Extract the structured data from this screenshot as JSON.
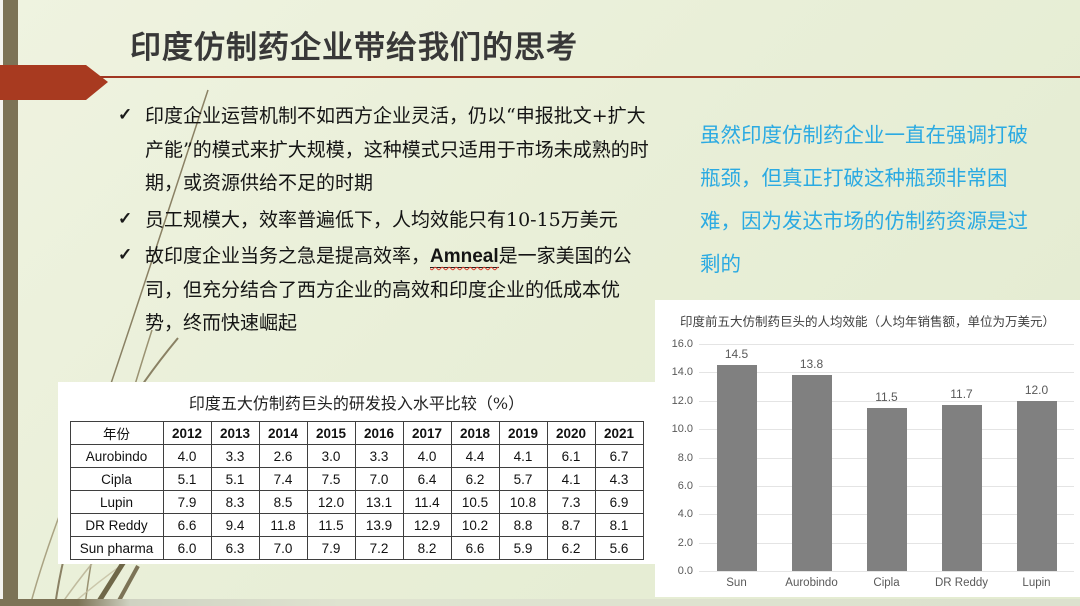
{
  "slide": {
    "title": "印度仿制药企业带给我们的思考",
    "check_glyph": "✓",
    "bullets": {
      "b1": "印度企业运营机制不如西方企业灵活，仍以“申报批文+扩大产能”的模式来扩大规模，这种模式只适用于市场未成熟的时期，或资源供给不足的时期",
      "b2": "员工规模大，效率普遍低下，人均效能只有10-15万美元",
      "b3_pre": "故印度企业当务之急是提高效率，",
      "b3_em": "Amneal",
      "b3_post": "是一家美国的公司，但充分结合了西方企业的高效和印度企业的低成本优势，终而快速崛起"
    },
    "note": "虽然印度仿制药企业一直在强调打破瓶颈，但真正打破这种瓶颈非常困难，因为发达市场的仿制药资源是过剩的"
  },
  "rd_table": {
    "title": "印度五大仿制药巨头的研发投入水平比较（%）",
    "header": [
      "年份",
      "2012",
      "2013",
      "2014",
      "2015",
      "2016",
      "2017",
      "2018",
      "2019",
      "2020",
      "2021"
    ],
    "rows": [
      {
        "name": "Aurobindo",
        "values": [
          "4.0",
          "3.3",
          "2.6",
          "3.0",
          "3.3",
          "4.0",
          "4.4",
          "4.1",
          "6.1",
          "6.7"
        ]
      },
      {
        "name": "Cipla",
        "values": [
          "5.1",
          "5.1",
          "7.4",
          "7.5",
          "7.0",
          "6.4",
          "6.2",
          "5.7",
          "4.1",
          "4.3"
        ]
      },
      {
        "name": "Lupin",
        "values": [
          "7.9",
          "8.3",
          "8.5",
          "12.0",
          "13.1",
          "11.4",
          "10.5",
          "10.8",
          "7.3",
          "6.9"
        ]
      },
      {
        "name": "DR Reddy",
        "values": [
          "6.6",
          "9.4",
          "11.8",
          "11.5",
          "13.9",
          "12.9",
          "10.2",
          "8.8",
          "8.7",
          "8.1"
        ]
      },
      {
        "name": "Sun pharma",
        "values": [
          "6.0",
          "6.3",
          "7.0",
          "7.9",
          "7.2",
          "8.2",
          "6.6",
          "5.9",
          "6.2",
          "5.6"
        ]
      }
    ]
  },
  "chart_data": {
    "type": "bar",
    "title": "印度前五大仿制药巨头的人均效能（人均年销售额，单位为万美元）",
    "categories": [
      "Sun",
      "Aurobindo",
      "Cipla",
      "DR Reddy",
      "Lupin"
    ],
    "values": [
      14.5,
      13.8,
      11.5,
      11.7,
      12.0
    ],
    "value_labels": [
      "14.5",
      "13.8",
      "11.5",
      "11.7",
      "12.0"
    ],
    "y_ticks": [
      "16.0",
      "14.0",
      "12.0",
      "10.0",
      "8.0",
      "6.0",
      "4.0",
      "2.0",
      "0.0"
    ],
    "ylim": [
      0,
      16
    ],
    "grid": true,
    "legend": "none",
    "bar_color": "#808080"
  },
  "colors": {
    "accent_red": "#a83a20",
    "olive": "#7c7356",
    "note_blue": "#2baae2",
    "bar_gray": "#808080",
    "background": "#e9efd8"
  }
}
